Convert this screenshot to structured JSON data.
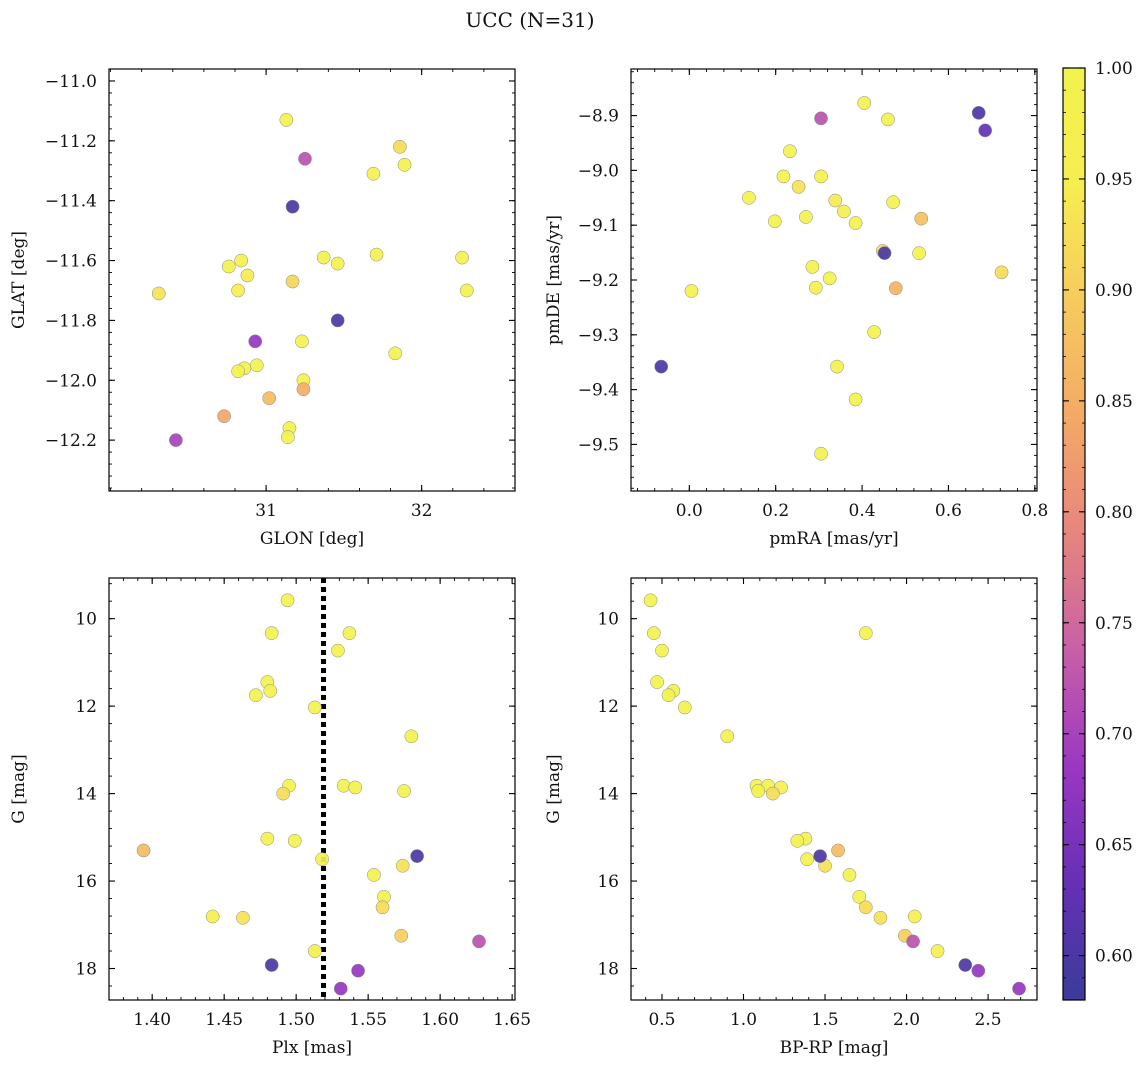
{
  "title": "UCC (N=31)",
  "colormap": {
    "range": [
      0.58,
      1.0
    ],
    "ticks": [
      "1.00",
      "0.95",
      "0.90",
      "0.85",
      "0.80",
      "0.75",
      "0.70",
      "0.65",
      "0.60"
    ],
    "tick_values": [
      1.0,
      0.95,
      0.9,
      0.85,
      0.8,
      0.75,
      0.7,
      0.65,
      0.6
    ],
    "stops": [
      "#3b3b9a",
      "#6530b5",
      "#9a37c2",
      "#c860a6",
      "#e6857e",
      "#f4a966",
      "#f6cb5d",
      "#f6ee50",
      "#f2f34c"
    ]
  },
  "chart_data": [
    {
      "type": "scatter",
      "id": "glon-glat",
      "xlabel": "GLON [deg]",
      "ylabel": "GLAT [deg]",
      "xlim": [
        29.99,
        32.6
      ],
      "ylim": [
        -12.37,
        -10.96
      ],
      "xticks": [
        31,
        32
      ],
      "xtick_labels": [
        "31",
        "32"
      ],
      "yticks": [
        -11.0,
        -11.2,
        -11.4,
        -11.6,
        -11.8,
        -12.0,
        -12.2
      ],
      "ytick_labels": [
        "−11.0",
        "−11.2",
        "−11.4",
        "−11.6",
        "−11.8",
        "−12.0",
        "−12.2"
      ],
      "points": [
        {
          "x": 31.13,
          "y": -11.13,
          "c": 0.99
        },
        {
          "x": 31.86,
          "y": -11.22,
          "c": 0.92
        },
        {
          "x": 31.25,
          "y": -11.26,
          "c": 0.72
        },
        {
          "x": 31.89,
          "y": -11.28,
          "c": 0.99
        },
        {
          "x": 31.69,
          "y": -11.31,
          "c": 0.98
        },
        {
          "x": 31.17,
          "y": -11.42,
          "c": 0.6
        },
        {
          "x": 31.37,
          "y": -11.59,
          "c": 0.98
        },
        {
          "x": 31.71,
          "y": -11.58,
          "c": 0.97
        },
        {
          "x": 32.26,
          "y": -11.59,
          "c": 0.98
        },
        {
          "x": 31.46,
          "y": -11.61,
          "c": 0.99
        },
        {
          "x": 30.84,
          "y": -11.6,
          "c": 0.98
        },
        {
          "x": 30.76,
          "y": -11.62,
          "c": 0.99
        },
        {
          "x": 30.88,
          "y": -11.65,
          "c": 0.94
        },
        {
          "x": 31.17,
          "y": -11.67,
          "c": 0.91
        },
        {
          "x": 30.31,
          "y": -11.71,
          "c": 0.93
        },
        {
          "x": 30.82,
          "y": -11.7,
          "c": 0.95
        },
        {
          "x": 32.29,
          "y": -11.7,
          "c": 0.99
        },
        {
          "x": 31.46,
          "y": -11.8,
          "c": 0.6
        },
        {
          "x": 30.93,
          "y": -11.87,
          "c": 0.68
        },
        {
          "x": 31.23,
          "y": -11.87,
          "c": 0.99
        },
        {
          "x": 31.83,
          "y": -11.91,
          "c": 0.99
        },
        {
          "x": 30.94,
          "y": -11.95,
          "c": 0.99
        },
        {
          "x": 30.86,
          "y": -11.96,
          "c": 0.99
        },
        {
          "x": 30.82,
          "y": -11.97,
          "c": 0.99
        },
        {
          "x": 31.24,
          "y": -12.0,
          "c": 0.99
        },
        {
          "x": 31.24,
          "y": -12.03,
          "c": 0.85
        },
        {
          "x": 31.02,
          "y": -12.06,
          "c": 0.87
        },
        {
          "x": 30.73,
          "y": -12.12,
          "c": 0.84
        },
        {
          "x": 31.15,
          "y": -12.16,
          "c": 0.99
        },
        {
          "x": 31.14,
          "y": -12.19,
          "c": 0.99
        },
        {
          "x": 30.42,
          "y": -12.2,
          "c": 0.7
        }
      ]
    },
    {
      "type": "scatter",
      "id": "pmra-pmde",
      "xlabel": "pmRA [mas/yr]",
      "ylabel": "pmDE [mas/yr]",
      "xlim": [
        -0.135,
        0.805
      ],
      "ylim": [
        -9.585,
        -8.815
      ],
      "xticks": [
        0.0,
        0.2,
        0.4,
        0.6,
        0.8
      ],
      "xtick_labels": [
        "0.0",
        "0.2",
        "0.4",
        "0.6",
        "0.8"
      ],
      "yticks": [
        -8.9,
        -9.0,
        -9.1,
        -9.2,
        -9.3,
        -9.4,
        -9.5
      ],
      "ytick_labels": [
        "−8.9",
        "−9.0",
        "−9.1",
        "−9.2",
        "−9.3",
        "−9.4",
        "−9.5"
      ],
      "points": [
        {
          "x": 0.67,
          "y": -8.895,
          "c": 0.6
        },
        {
          "x": 0.685,
          "y": -8.927,
          "c": 0.63
        },
        {
          "x": 0.405,
          "y": -8.877,
          "c": 0.99
        },
        {
          "x": 0.46,
          "y": -8.907,
          "c": 0.99
        },
        {
          "x": 0.305,
          "y": -8.905,
          "c": 0.72
        },
        {
          "x": 0.233,
          "y": -8.965,
          "c": 0.99
        },
        {
          "x": 0.218,
          "y": -9.011,
          "c": 0.99
        },
        {
          "x": 0.305,
          "y": -9.011,
          "c": 0.99
        },
        {
          "x": 0.253,
          "y": -9.03,
          "c": 0.93
        },
        {
          "x": 0.138,
          "y": -9.05,
          "c": 0.99
        },
        {
          "x": 0.338,
          "y": -9.055,
          "c": 0.94
        },
        {
          "x": 0.472,
          "y": -9.058,
          "c": 0.99
        },
        {
          "x": 0.358,
          "y": -9.075,
          "c": 0.96
        },
        {
          "x": 0.27,
          "y": -9.085,
          "c": 0.99
        },
        {
          "x": 0.537,
          "y": -9.088,
          "c": 0.88
        },
        {
          "x": 0.198,
          "y": -9.093,
          "c": 0.99
        },
        {
          "x": 0.385,
          "y": -9.096,
          "c": 0.98
        },
        {
          "x": 0.448,
          "y": -9.147,
          "c": 0.92
        },
        {
          "x": 0.452,
          "y": -9.151,
          "c": 0.6
        },
        {
          "x": 0.532,
          "y": -9.151,
          "c": 0.99
        },
        {
          "x": 0.285,
          "y": -9.176,
          "c": 0.99
        },
        {
          "x": 0.723,
          "y": -9.186,
          "c": 0.92
        },
        {
          "x": 0.325,
          "y": -9.197,
          "c": 0.99
        },
        {
          "x": 0.293,
          "y": -9.214,
          "c": 0.96
        },
        {
          "x": 0.478,
          "y": -9.215,
          "c": 0.86
        },
        {
          "x": 0.005,
          "y": -9.22,
          "c": 0.98
        },
        {
          "x": 0.428,
          "y": -9.295,
          "c": 0.99
        },
        {
          "x": -0.065,
          "y": -9.358,
          "c": 0.6
        },
        {
          "x": 0.342,
          "y": -9.358,
          "c": 0.99
        },
        {
          "x": 0.385,
          "y": -9.418,
          "c": 0.99
        },
        {
          "x": 0.305,
          "y": -9.517,
          "c": 0.99
        }
      ]
    },
    {
      "type": "scatter",
      "id": "plx-g",
      "xlabel": "Plx [mas]",
      "ylabel": "G [mag]",
      "xlim": [
        1.37,
        1.652
      ],
      "ylim": [
        18.72,
        9.07
      ],
      "xticks": [
        1.4,
        1.45,
        1.5,
        1.55,
        1.6,
        1.65
      ],
      "xtick_labels": [
        "1.40",
        "1.45",
        "1.50",
        "1.55",
        "1.60",
        "1.65"
      ],
      "yticks": [
        10,
        12,
        14,
        16,
        18
      ],
      "ytick_labels": [
        "10",
        "12",
        "14",
        "16",
        "18"
      ],
      "vline": 1.519,
      "points": [
        {
          "x": 1.494,
          "y": 9.58,
          "c": 0.99
        },
        {
          "x": 1.483,
          "y": 10.33,
          "c": 0.99
        },
        {
          "x": 1.537,
          "y": 10.33,
          "c": 0.99
        },
        {
          "x": 1.529,
          "y": 10.73,
          "c": 0.99
        },
        {
          "x": 1.48,
          "y": 11.45,
          "c": 0.99
        },
        {
          "x": 1.482,
          "y": 11.65,
          "c": 0.99
        },
        {
          "x": 1.472,
          "y": 11.75,
          "c": 0.99
        },
        {
          "x": 1.513,
          "y": 12.03,
          "c": 0.99
        },
        {
          "x": 1.58,
          "y": 12.69,
          "c": 0.99
        },
        {
          "x": 1.495,
          "y": 13.82,
          "c": 0.99
        },
        {
          "x": 1.533,
          "y": 13.82,
          "c": 0.99
        },
        {
          "x": 1.541,
          "y": 13.86,
          "c": 0.99
        },
        {
          "x": 1.575,
          "y": 13.94,
          "c": 0.99
        },
        {
          "x": 1.491,
          "y": 14.0,
          "c": 0.92
        },
        {
          "x": 1.48,
          "y": 15.03,
          "c": 0.99
        },
        {
          "x": 1.499,
          "y": 15.08,
          "c": 0.99
        },
        {
          "x": 1.394,
          "y": 15.3,
          "c": 0.87
        },
        {
          "x": 1.584,
          "y": 15.43,
          "c": 0.6
        },
        {
          "x": 1.518,
          "y": 15.5,
          "c": 0.99
        },
        {
          "x": 1.574,
          "y": 15.65,
          "c": 0.93
        },
        {
          "x": 1.554,
          "y": 15.86,
          "c": 0.99
        },
        {
          "x": 1.561,
          "y": 16.36,
          "c": 0.99
        },
        {
          "x": 1.56,
          "y": 16.6,
          "c": 0.92
        },
        {
          "x": 1.442,
          "y": 16.81,
          "c": 0.96
        },
        {
          "x": 1.463,
          "y": 16.84,
          "c": 0.93
        },
        {
          "x": 1.573,
          "y": 17.25,
          "c": 0.9
        },
        {
          "x": 1.627,
          "y": 17.38,
          "c": 0.72
        },
        {
          "x": 1.513,
          "y": 17.6,
          "c": 0.96
        },
        {
          "x": 1.483,
          "y": 17.92,
          "c": 0.6
        },
        {
          "x": 1.543,
          "y": 18.05,
          "c": 0.68
        },
        {
          "x": 1.531,
          "y": 18.46,
          "c": 0.68
        }
      ]
    },
    {
      "type": "scatter",
      "id": "bprp-g",
      "xlabel": "BP-RP [mag]",
      "ylabel": "G [mag]",
      "xlim": [
        0.31,
        2.8
      ],
      "ylim": [
        18.72,
        9.07
      ],
      "xticks": [
        0.5,
        1.0,
        1.5,
        2.0,
        2.5
      ],
      "xtick_labels": [
        "0.5",
        "1.0",
        "1.5",
        "2.0",
        "2.5"
      ],
      "yticks": [
        10,
        12,
        14,
        16,
        18
      ],
      "ytick_labels": [
        "10",
        "12",
        "14",
        "16",
        "18"
      ],
      "points": [
        {
          "x": 0.43,
          "y": 9.58,
          "c": 0.99
        },
        {
          "x": 0.45,
          "y": 10.33,
          "c": 0.99
        },
        {
          "x": 1.75,
          "y": 10.33,
          "c": 0.99
        },
        {
          "x": 0.5,
          "y": 10.73,
          "c": 0.99
        },
        {
          "x": 0.47,
          "y": 11.45,
          "c": 0.99
        },
        {
          "x": 0.57,
          "y": 11.65,
          "c": 0.99
        },
        {
          "x": 0.54,
          "y": 11.75,
          "c": 0.99
        },
        {
          "x": 0.64,
          "y": 12.03,
          "c": 0.99
        },
        {
          "x": 0.9,
          "y": 12.69,
          "c": 0.99
        },
        {
          "x": 1.08,
          "y": 13.82,
          "c": 0.99
        },
        {
          "x": 1.15,
          "y": 13.82,
          "c": 0.99
        },
        {
          "x": 1.23,
          "y": 13.86,
          "c": 0.99
        },
        {
          "x": 1.09,
          "y": 13.94,
          "c": 0.99
        },
        {
          "x": 1.18,
          "y": 14.0,
          "c": 0.92
        },
        {
          "x": 1.38,
          "y": 15.03,
          "c": 0.99
        },
        {
          "x": 1.33,
          "y": 15.08,
          "c": 0.99
        },
        {
          "x": 1.58,
          "y": 15.3,
          "c": 0.87
        },
        {
          "x": 1.47,
          "y": 15.43,
          "c": 0.6
        },
        {
          "x": 1.39,
          "y": 15.5,
          "c": 0.99
        },
        {
          "x": 1.5,
          "y": 15.65,
          "c": 0.93
        },
        {
          "x": 1.65,
          "y": 15.86,
          "c": 0.99
        },
        {
          "x": 1.71,
          "y": 16.36,
          "c": 0.99
        },
        {
          "x": 1.75,
          "y": 16.6,
          "c": 0.92
        },
        {
          "x": 2.05,
          "y": 16.81,
          "c": 0.96
        },
        {
          "x": 1.84,
          "y": 16.84,
          "c": 0.93
        },
        {
          "x": 1.99,
          "y": 17.25,
          "c": 0.9
        },
        {
          "x": 2.04,
          "y": 17.38,
          "c": 0.72
        },
        {
          "x": 2.19,
          "y": 17.6,
          "c": 0.96
        },
        {
          "x": 2.36,
          "y": 17.92,
          "c": 0.6
        },
        {
          "x": 2.44,
          "y": 18.05,
          "c": 0.68
        },
        {
          "x": 2.69,
          "y": 18.46,
          "c": 0.68
        }
      ]
    }
  ]
}
